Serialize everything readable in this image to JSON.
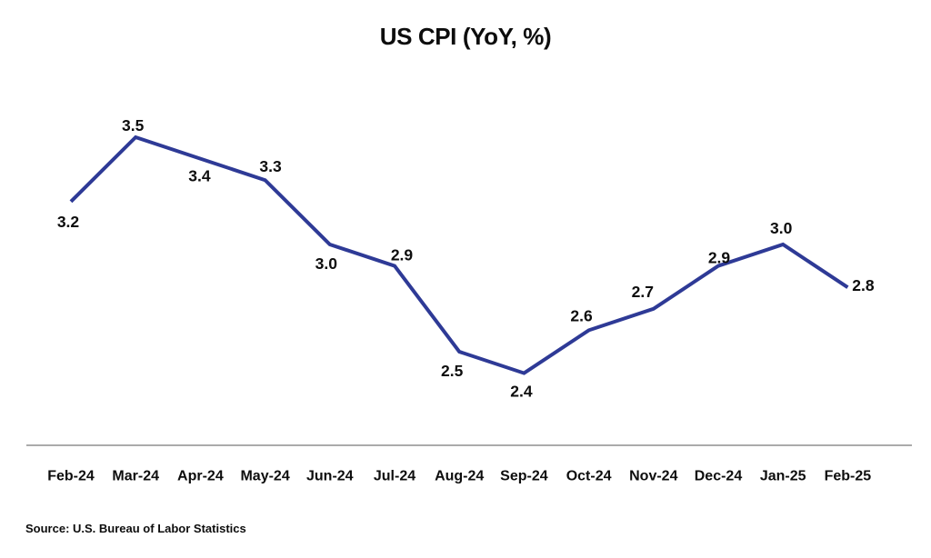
{
  "chart_data": {
    "type": "line",
    "title": "US CPI (YoY, %)",
    "categories": [
      "Feb-24",
      "Mar-24",
      "Apr-24",
      "May-24",
      "Jun-24",
      "Jul-24",
      "Aug-24",
      "Sep-24",
      "Oct-24",
      "Nov-24",
      "Dec-24",
      "Jan-25",
      "Feb-25"
    ],
    "values": [
      3.2,
      3.5,
      3.4,
      3.3,
      3.0,
      2.9,
      2.5,
      2.4,
      2.6,
      2.7,
      2.9,
      3.0,
      2.8
    ],
    "series_name": "US CPI YoY %",
    "xlabel": "",
    "ylabel": "",
    "ylim": [
      2.05,
      3.75
    ],
    "grid": false,
    "legend": false,
    "y_axis_visible": false,
    "data_labels": true,
    "label_placements": [
      "below",
      "above",
      "below",
      "above",
      "below",
      "above",
      "below",
      "below",
      "above",
      "above",
      "above",
      "above",
      "right"
    ],
    "source": "Source: U.S. Bureau of Labor Statistics",
    "colors": {
      "line": "#2e3a96",
      "axis_line": "#ababab",
      "text": "#0d0d0d",
      "background": "#ffffff"
    }
  }
}
